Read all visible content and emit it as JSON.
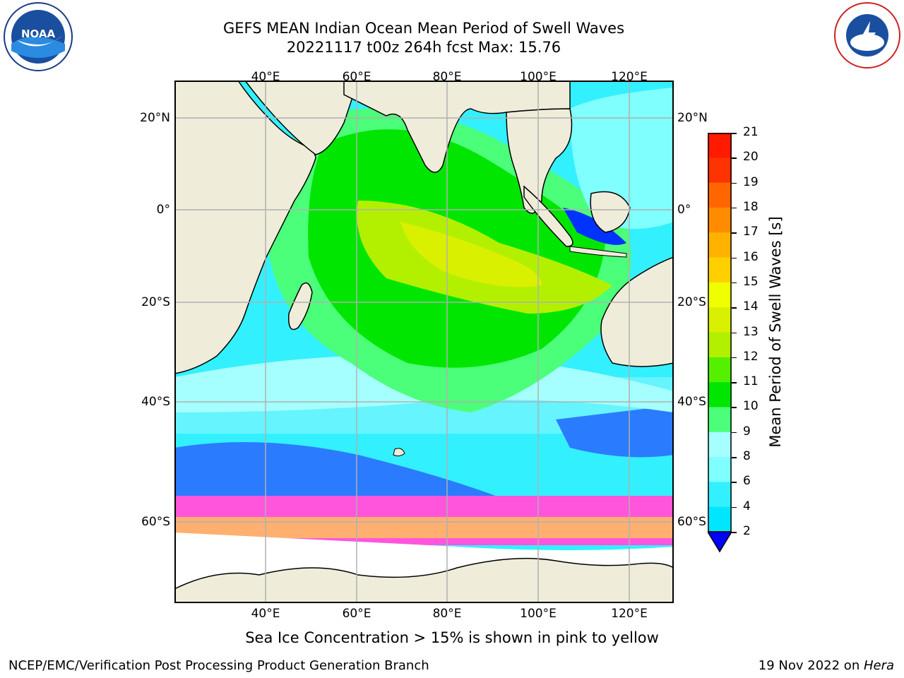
{
  "title": {
    "line1": "GEFS MEAN Indian Ocean Mean Period of Swell Waves",
    "line2": "20221117 t00z 264h fcst   Max: 15.76"
  },
  "logos": {
    "left": {
      "text": "NOAA",
      "ring": "NATIONAL OCEANIC AND ATMOSPHERIC ADMINISTRATION · U.S. DEPARTMENT OF COMMERCE"
    },
    "right": {
      "ring": "NATIONAL WEATHER SERVICE"
    }
  },
  "map": {
    "lon_ticks": [
      "40°E",
      "60°E",
      "80°E",
      "100°E",
      "120°E"
    ],
    "lon_values": [
      40,
      60,
      80,
      100,
      120
    ],
    "lat_ticks": [
      "20°N",
      "0°",
      "20°S",
      "40°S",
      "60°S"
    ],
    "lat_values": [
      20,
      0,
      -20,
      -40,
      -60
    ],
    "extent": {
      "lon": [
        20,
        130
      ],
      "lat": [
        -70,
        27
      ]
    },
    "colors": {
      "land": "#efedda",
      "grid": "#b0b0b0",
      "ice": "#ffffff"
    }
  },
  "colorbar": {
    "label": "Mean Period of Swell Waves [s]",
    "ticks": [
      "2",
      "4",
      "6",
      "8",
      "9",
      "10",
      "11",
      "12",
      "13",
      "14",
      "15",
      "16",
      "17",
      "18",
      "19",
      "20",
      "21"
    ],
    "colors": [
      "#0033ff",
      "#00e6ff",
      "#33f0ff",
      "#80ffff",
      "#a6ffff",
      "#4cff7a",
      "#00e600",
      "#55f000",
      "#b3f000",
      "#d9f000",
      "#f0ff00",
      "#ffd000",
      "#ffb300",
      "#ff8c00",
      "#ff6600",
      "#ff3300",
      "#ff1a00"
    ],
    "under_color": "#0000ff"
  },
  "caption": "Sea Ice Concentration > 15% is shown in pink to yellow",
  "footer": {
    "left": "NCEP/EMC/Verification Post Processing Product Generation Branch",
    "right_date": "19 Nov 2022 on ",
    "right_host": "Hera"
  }
}
